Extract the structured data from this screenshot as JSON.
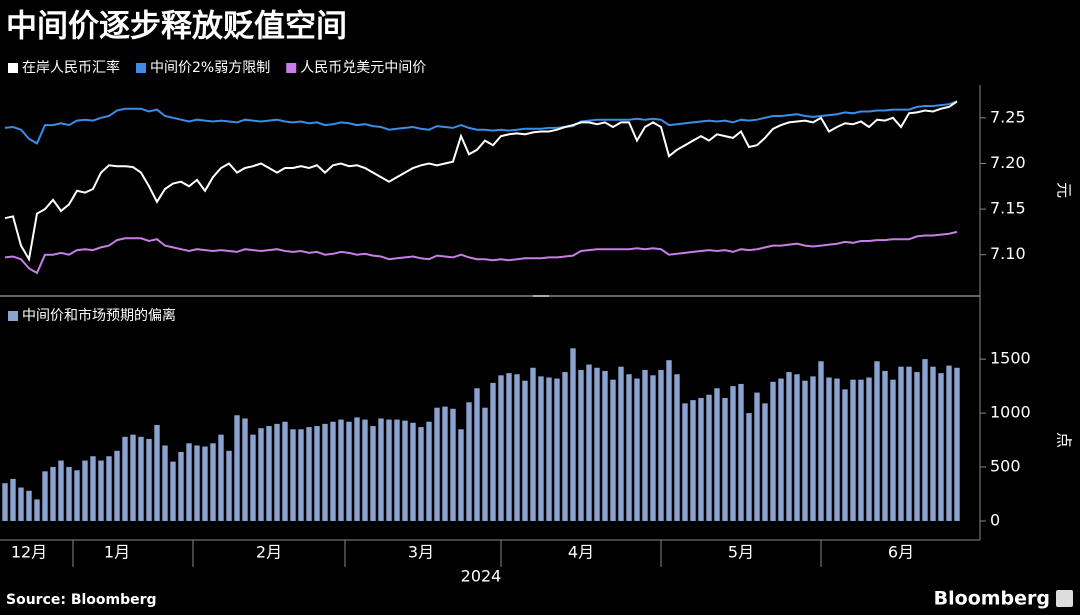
{
  "title": "中间价逐步释放贬值空间",
  "source": "Source: Bloomberg",
  "brand": "Bloomberg",
  "chart_data": [
    {
      "type": "line",
      "ylabel": "元",
      "ylim": [
        7.058,
        7.286
      ],
      "yticks": [
        {
          "value": 7.1,
          "label": "7.10"
        },
        7.15,
        {
          "value": 7.2,
          "label": "7.20"
        },
        7.25
      ],
      "series": [
        {
          "name": "在岸人民币汇率",
          "color": "#ffffff",
          "values": [
            7.14,
            7.142,
            7.11,
            7.095,
            7.145,
            7.15,
            7.16,
            7.148,
            7.155,
            7.17,
            7.168,
            7.172,
            7.19,
            7.198,
            7.197,
            7.197,
            7.196,
            7.19,
            7.175,
            7.158,
            7.172,
            7.178,
            7.18,
            7.175,
            7.182,
            7.17,
            7.185,
            7.195,
            7.2,
            7.19,
            7.195,
            7.197,
            7.2,
            7.195,
            7.19,
            7.195,
            7.195,
            7.197,
            7.195,
            7.198,
            7.19,
            7.198,
            7.2,
            7.197,
            7.198,
            7.195,
            7.19,
            7.185,
            7.18,
            7.185,
            7.19,
            7.195,
            7.198,
            7.2,
            7.198,
            7.2,
            7.202,
            7.23,
            7.21,
            7.215,
            7.225,
            7.22,
            7.23,
            7.232,
            7.233,
            7.232,
            7.234,
            7.235,
            7.235,
            7.237,
            7.24,
            7.242,
            7.245,
            7.245,
            7.243,
            7.245,
            7.24,
            7.245,
            7.245,
            7.225,
            7.24,
            7.245,
            7.24,
            7.208,
            7.215,
            7.22,
            7.225,
            7.23,
            7.225,
            7.232,
            7.23,
            7.228,
            7.235,
            7.218,
            7.22,
            7.228,
            7.238,
            7.242,
            7.245,
            7.246,
            7.247,
            7.245,
            7.25,
            7.235,
            7.24,
            7.244,
            7.243,
            7.246,
            7.24,
            7.248,
            7.247,
            7.25,
            7.24,
            7.255,
            7.256,
            7.258,
            7.257,
            7.26,
            7.262,
            7.268
          ]
        },
        {
          "name": "中间价2%弱方限制",
          "color": "#3b8de8",
          "values": [
            7.239,
            7.24,
            7.237,
            7.227,
            7.222,
            7.242,
            7.242,
            7.244,
            7.242,
            7.247,
            7.248,
            7.247,
            7.25,
            7.252,
            7.258,
            7.26,
            7.26,
            7.26,
            7.257,
            7.259,
            7.252,
            7.25,
            7.248,
            7.246,
            7.248,
            7.247,
            7.246,
            7.247,
            7.246,
            7.245,
            7.248,
            7.247,
            7.246,
            7.247,
            7.248,
            7.246,
            7.245,
            7.246,
            7.244,
            7.245,
            7.242,
            7.243,
            7.245,
            7.244,
            7.242,
            7.243,
            7.241,
            7.24,
            7.237,
            7.238,
            7.239,
            7.24,
            7.238,
            7.237,
            7.241,
            7.24,
            7.239,
            7.242,
            7.239,
            7.237,
            7.237,
            7.236,
            7.237,
            7.236,
            7.237,
            7.238,
            7.238,
            7.238,
            7.239,
            7.239,
            7.24,
            7.241,
            7.246,
            7.247,
            7.248,
            7.248,
            7.248,
            7.248,
            7.248,
            7.249,
            7.248,
            7.249,
            7.248,
            7.242,
            7.243,
            7.244,
            7.245,
            7.246,
            7.247,
            7.246,
            7.247,
            7.245,
            7.248,
            7.247,
            7.248,
            7.25,
            7.252,
            7.252,
            7.253,
            7.254,
            7.252,
            7.251,
            7.252,
            7.253,
            7.254,
            7.256,
            7.255,
            7.257,
            7.257,
            7.258,
            7.258,
            7.259,
            7.259,
            7.259,
            7.262,
            7.263,
            7.263,
            7.264,
            7.265,
            7.268
          ]
        },
        {
          "name": "人民币兑美元中间价",
          "color": "#c77ee6",
          "values": [
            7.097,
            7.098,
            7.095,
            7.085,
            7.08,
            7.1,
            7.1,
            7.102,
            7.1,
            7.105,
            7.106,
            7.105,
            7.108,
            7.11,
            7.116,
            7.118,
            7.118,
            7.118,
            7.115,
            7.117,
            7.11,
            7.108,
            7.106,
            7.104,
            7.106,
            7.105,
            7.104,
            7.105,
            7.104,
            7.103,
            7.106,
            7.105,
            7.104,
            7.105,
            7.106,
            7.104,
            7.103,
            7.104,
            7.102,
            7.103,
            7.1,
            7.101,
            7.103,
            7.102,
            7.1,
            7.101,
            7.099,
            7.098,
            7.095,
            7.096,
            7.097,
            7.098,
            7.096,
            7.095,
            7.099,
            7.098,
            7.097,
            7.1,
            7.097,
            7.095,
            7.095,
            7.094,
            7.095,
            7.094,
            7.095,
            7.096,
            7.096,
            7.096,
            7.097,
            7.097,
            7.098,
            7.099,
            7.104,
            7.105,
            7.106,
            7.106,
            7.106,
            7.106,
            7.106,
            7.107,
            7.106,
            7.107,
            7.106,
            7.1,
            7.101,
            7.102,
            7.103,
            7.104,
            7.105,
            7.104,
            7.105,
            7.103,
            7.106,
            7.105,
            7.106,
            7.108,
            7.11,
            7.11,
            7.111,
            7.112,
            7.11,
            7.109,
            7.11,
            7.111,
            7.112,
            7.114,
            7.113,
            7.115,
            7.115,
            7.116,
            7.116,
            7.117,
            7.117,
            7.117,
            7.12,
            7.121,
            7.121,
            7.122,
            7.123,
            7.125
          ]
        }
      ]
    },
    {
      "type": "bar",
      "ylabel": "点",
      "xlabel": "2024",
      "ylim": [
        -130,
        1770
      ],
      "yticks": [
        0,
        500,
        1000,
        1500
      ],
      "categories": [
        null,
        null,
        null,
        "12月",
        null,
        null,
        null,
        null,
        null,
        null,
        null,
        null,
        null,
        null,
        "1月",
        null,
        null,
        null,
        null,
        null,
        null,
        null,
        null,
        null,
        null,
        null,
        null,
        null,
        null,
        null,
        null,
        null,
        null,
        "2月",
        null,
        null,
        null,
        null,
        null,
        null,
        null,
        null,
        null,
        null,
        null,
        null,
        null,
        null,
        null,
        null,
        null,
        null,
        "3月",
        null,
        null,
        null,
        null,
        null,
        null,
        null,
        null,
        null,
        null,
        null,
        null,
        null,
        null,
        null,
        null,
        null,
        null,
        null,
        "4月",
        null,
        null,
        null,
        null,
        null,
        null,
        null,
        null,
        null,
        null,
        null,
        null,
        null,
        null,
        null,
        null,
        null,
        null,
        null,
        "5月",
        null,
        null,
        null,
        null,
        null,
        null,
        null,
        null,
        null,
        null,
        null,
        null,
        null,
        null,
        null,
        null,
        null,
        null,
        null,
        "6月",
        null,
        null,
        null,
        null,
        null,
        null,
        null
      ],
      "series": [
        {
          "name": "中间价和市场预期的偏离",
          "color": "#8aa3cf",
          "values": [
            350,
            390,
            310,
            280,
            200,
            460,
            500,
            560,
            500,
            470,
            560,
            600,
            560,
            600,
            650,
            780,
            800,
            780,
            760,
            890,
            700,
            550,
            640,
            720,
            700,
            690,
            720,
            800,
            650,
            980,
            950,
            800,
            860,
            880,
            900,
            920,
            850,
            850,
            870,
            880,
            900,
            920,
            940,
            920,
            960,
            940,
            880,
            950,
            940,
            940,
            930,
            910,
            870,
            920,
            1050,
            1060,
            1040,
            850,
            1100,
            1230,
            1050,
            1280,
            1350,
            1370,
            1360,
            1300,
            1420,
            1340,
            1330,
            1320,
            1380,
            1600,
            1400,
            1450,
            1420,
            1390,
            1310,
            1430,
            1360,
            1320,
            1400,
            1350,
            1400,
            1490,
            1360,
            1090,
            1120,
            1140,
            1170,
            1230,
            1140,
            1250,
            1270,
            1000,
            1190,
            1090,
            1290,
            1320,
            1380,
            1360,
            1300,
            1340,
            1480,
            1330,
            1320,
            1220,
            1310,
            1310,
            1330,
            1480,
            1390,
            1310,
            1430,
            1430,
            1380,
            1500,
            1430,
            1370,
            1440,
            1420
          ]
        }
      ]
    }
  ]
}
